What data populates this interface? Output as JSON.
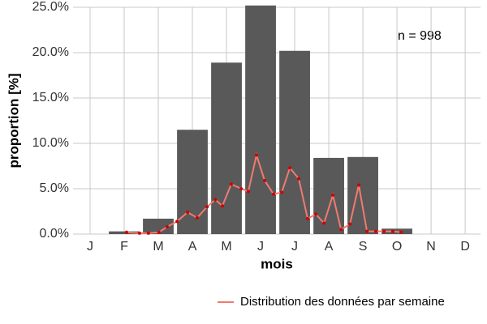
{
  "chart_data": {
    "type": "bar",
    "annotation": "n = 998",
    "x_label": "mois",
    "y_label": "proportion [%]",
    "categories": [
      "J",
      "F",
      "M",
      "A",
      "M",
      "J",
      "J",
      "A",
      "S",
      "O",
      "N",
      "D"
    ],
    "values": [
      0,
      0.3,
      1.7,
      11.5,
      18.9,
      25.2,
      20.2,
      8.4,
      8.5,
      0.6,
      0,
      0
    ],
    "color": "#595959",
    "ylim": [
      0,
      25
    ],
    "yticks": [
      {
        "value": 0,
        "label": "0.0%"
      },
      {
        "value": 5,
        "label": "5.0%"
      },
      {
        "value": 10,
        "label": "10.0%"
      },
      {
        "value": 15,
        "label": "15.0%"
      },
      {
        "value": 20,
        "label": "20.0%"
      },
      {
        "value": 25,
        "label": "25.0%"
      }
    ],
    "grid": true,
    "line": {
      "name": "Distribution des données par semaine",
      "color": "#f07a70",
      "point_color": "#d00000",
      "x": [
        2.07,
        2.45,
        2.71,
        3.02,
        3.26,
        3.55,
        3.86,
        4.14,
        4.43,
        4.67,
        4.88,
        5.14,
        5.43,
        5.64,
        5.88,
        6.12,
        6.38,
        6.62,
        6.86,
        7.12,
        7.38,
        7.62,
        7.86,
        8.12,
        8.36,
        8.62,
        8.88,
        9.12,
        9.38,
        9.62,
        9.88,
        10.12
      ],
      "values": [
        0.2,
        0.1,
        0.1,
        0.2,
        0.8,
        1.4,
        2.4,
        1.8,
        3.0,
        3.8,
        3.1,
        5.5,
        5.0,
        4.7,
        8.7,
        5.9,
        4.4,
        4.6,
        7.3,
        6.1,
        1.7,
        2.2,
        1.2,
        4.3,
        0.5,
        1.1,
        5.4,
        0.3,
        0.3,
        0.3,
        0.3,
        0.2
      ]
    },
    "xlim": [
      0.5,
      12.45
    ],
    "legend": "bottom-right"
  }
}
